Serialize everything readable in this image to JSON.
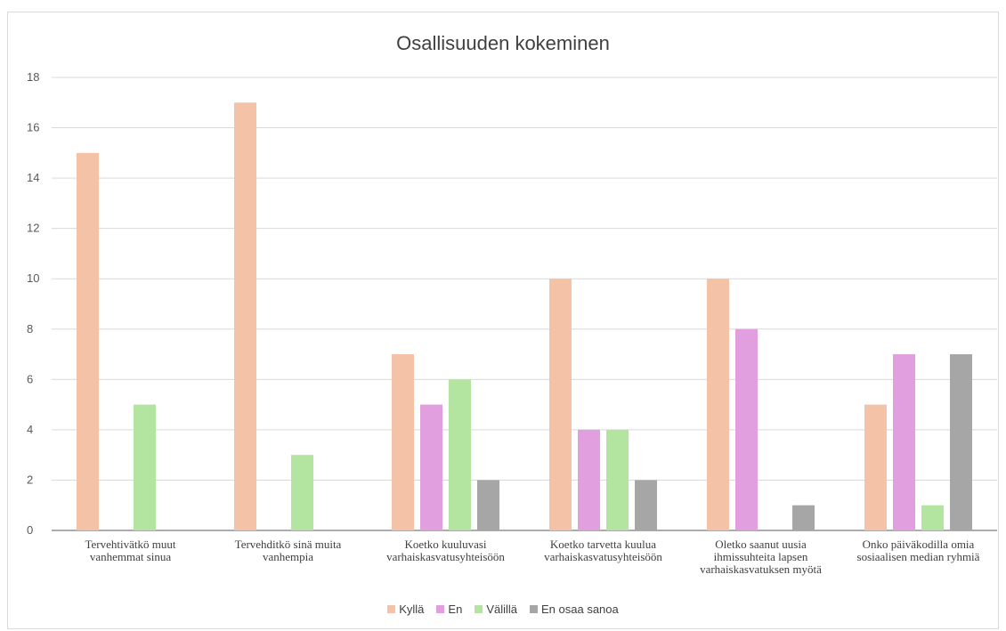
{
  "chart_data": {
    "type": "bar",
    "title": "Osallisuuden kokeminen",
    "categories": [
      [
        "Tervehtivätkö muut",
        "vanhemmat sinua"
      ],
      [
        "Tervehditkö sinä muita",
        "vanhempia"
      ],
      [
        "Koetko kuuluvasi",
        "varhaiskasvatusyhteisöön"
      ],
      [
        "Koetko tarvetta kuulua",
        "varhaiskasvatusyhteisöön"
      ],
      [
        "Oletko saanut uusia",
        "ihmissuhteita lapsen",
        "varhaiskasvatuksen myötä"
      ],
      [
        "Onko päiväkodilla omia",
        "sosiaalisen median ryhmiä"
      ]
    ],
    "series": [
      {
        "name": "Kyllä",
        "color": "#f4c2a6",
        "values": [
          15,
          17,
          7,
          10,
          10,
          5
        ]
      },
      {
        "name": "En",
        "color": "#e19fdf",
        "values": [
          0,
          0,
          5,
          4,
          8,
          7
        ]
      },
      {
        "name": "Välillä",
        "color": "#b3e5a0",
        "values": [
          5,
          3,
          6,
          4,
          0,
          1
        ]
      },
      {
        "name": "En osaa sanoa",
        "color": "#a6a6a6",
        "values": [
          0,
          0,
          2,
          2,
          1,
          7
        ]
      }
    ],
    "ylim": [
      0,
      18
    ],
    "yticks": [
      0,
      2,
      4,
      6,
      8,
      10,
      12,
      14,
      16,
      18
    ],
    "grid": true,
    "legend_position": "bottom"
  }
}
